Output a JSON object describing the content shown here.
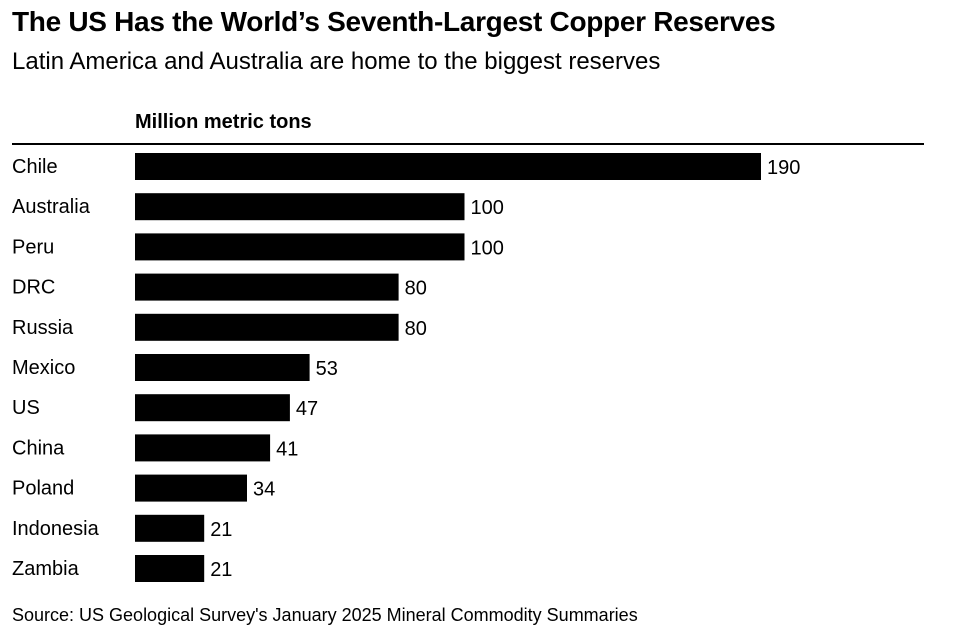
{
  "header": {
    "title": "The US Has the World’s Seventh-Largest Copper Reserves",
    "subtitle": "Latin America and Australia are home to the biggest reserves"
  },
  "footer": {
    "source": "Source: US Geological Survey's January 2025 Mineral Commodity Summaries"
  },
  "chart_data": {
    "type": "bar",
    "orientation": "horizontal",
    "title": "The US Has the World’s Seventh-Largest Copper Reserves",
    "subtitle": "Latin America and Australia are home to the biggest reserves",
    "unit_label": "Million metric tons",
    "categories": [
      "Chile",
      "Australia",
      "Peru",
      "DRC",
      "Russia",
      "Mexico",
      "US",
      "China",
      "Poland",
      "Indonesia",
      "Zambia"
    ],
    "values": [
      190,
      100,
      100,
      80,
      80,
      53,
      47,
      41,
      34,
      21,
      21
    ],
    "xlim": [
      0,
      190
    ],
    "grid": false,
    "legend": "none",
    "bar_color": "#000000"
  }
}
